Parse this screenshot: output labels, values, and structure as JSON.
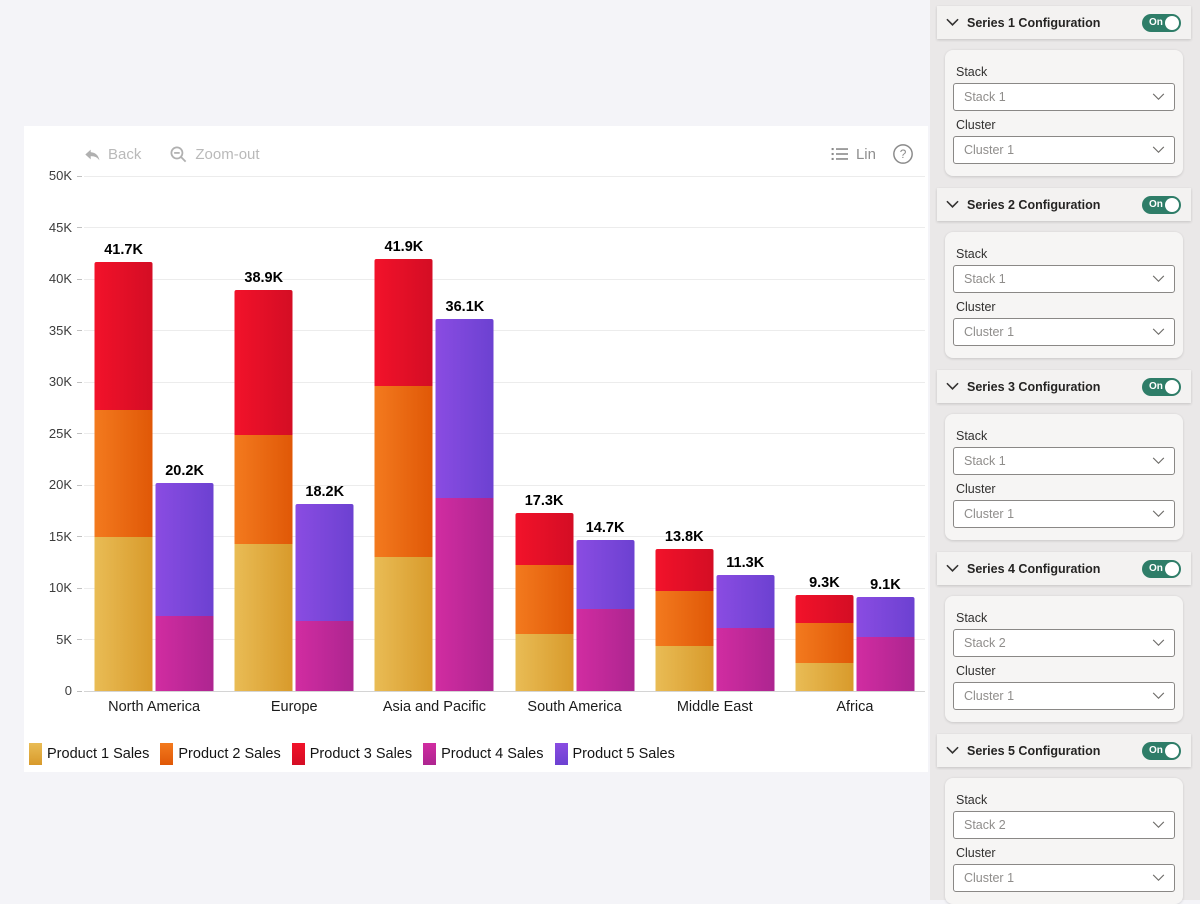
{
  "toolbar": {
    "back_label": "Back",
    "zoom_out_label": "Zoom-out",
    "scale_label": "Lin"
  },
  "colors": {
    "toggle_on": "#2e7d68",
    "card_background": "#ffffff",
    "page_background": "#f4f4f8",
    "sidebar_background": "#eae8e8"
  },
  "chart_data": {
    "type": "bar",
    "variant": "clustered-stacked",
    "title": "",
    "xlabel": "",
    "ylabel": "",
    "grid": true,
    "legend_position": "bottom",
    "ylim": [
      0,
      50000
    ],
    "yticks": [
      0,
      5000,
      10000,
      15000,
      20000,
      25000,
      30000,
      35000,
      40000,
      45000,
      50000
    ],
    "ytick_labels": [
      "0",
      "5K",
      "10K",
      "15K",
      "20K",
      "25K",
      "30K",
      "35K",
      "40K",
      "45K",
      "50K"
    ],
    "categories": [
      "North America",
      "Europe",
      "Asia and Pacific",
      "South America",
      "Middle East",
      "Africa"
    ],
    "stacks": [
      "Stack 1",
      "Stack 2"
    ],
    "series": [
      {
        "name": "Product 1 Sales",
        "stack": "Stack 1",
        "color": "#e9bc55",
        "color2": "#d89a2b",
        "values": [
          15000,
          14300,
          13000,
          5500,
          4400,
          2700
        ]
      },
      {
        "name": "Product 2 Sales",
        "stack": "Stack 1",
        "color": "#f37a1e",
        "color2": "#e05807",
        "values": [
          12300,
          10600,
          16600,
          6700,
          5300,
          3900
        ]
      },
      {
        "name": "Product 3 Sales",
        "stack": "Stack 1",
        "color": "#f2122a",
        "color2": "#d40d24",
        "values": [
          14400,
          14000,
          12300,
          5100,
          4100,
          2700
        ]
      },
      {
        "name": "Product 4 Sales",
        "stack": "Stack 2",
        "color": "#d12ca1",
        "color2": "#ad2590",
        "values": [
          7300,
          6800,
          18700,
          8000,
          6100,
          5200
        ]
      },
      {
        "name": "Product 5 Sales",
        "stack": "Stack 2",
        "color": "#8a4ce2",
        "color2": "#6c41d1",
        "values": [
          12900,
          11400,
          17400,
          6700,
          5200,
          3900
        ]
      }
    ],
    "stack_total_labels": {
      "Stack 1": [
        "41.7K",
        "38.9K",
        "41.9K",
        "17.3K",
        "13.8K",
        "9.3K"
      ],
      "Stack 2": [
        "20.2K",
        "18.2K",
        "36.1K",
        "14.7K",
        "11.3K",
        "9.1K"
      ]
    }
  },
  "sidebar": {
    "sections": [
      {
        "title": "Series 1 Configuration",
        "toggle_label": "On",
        "fields": [
          {
            "label": "Stack",
            "value": "Stack 1"
          },
          {
            "label": "Cluster",
            "value": "Cluster 1"
          }
        ]
      },
      {
        "title": "Series 2 Configuration",
        "toggle_label": "On",
        "fields": [
          {
            "label": "Stack",
            "value": "Stack 1"
          },
          {
            "label": "Cluster",
            "value": "Cluster 1"
          }
        ]
      },
      {
        "title": "Series 3 Configuration",
        "toggle_label": "On",
        "fields": [
          {
            "label": "Stack",
            "value": "Stack 1"
          },
          {
            "label": "Cluster",
            "value": "Cluster 1"
          }
        ]
      },
      {
        "title": "Series 4 Configuration",
        "toggle_label": "On",
        "fields": [
          {
            "label": "Stack",
            "value": "Stack 2"
          },
          {
            "label": "Cluster",
            "value": "Cluster 1"
          }
        ]
      },
      {
        "title": "Series 5 Configuration",
        "toggle_label": "On",
        "fields": [
          {
            "label": "Stack",
            "value": "Stack 2"
          },
          {
            "label": "Cluster",
            "value": "Cluster 1"
          }
        ]
      }
    ]
  }
}
